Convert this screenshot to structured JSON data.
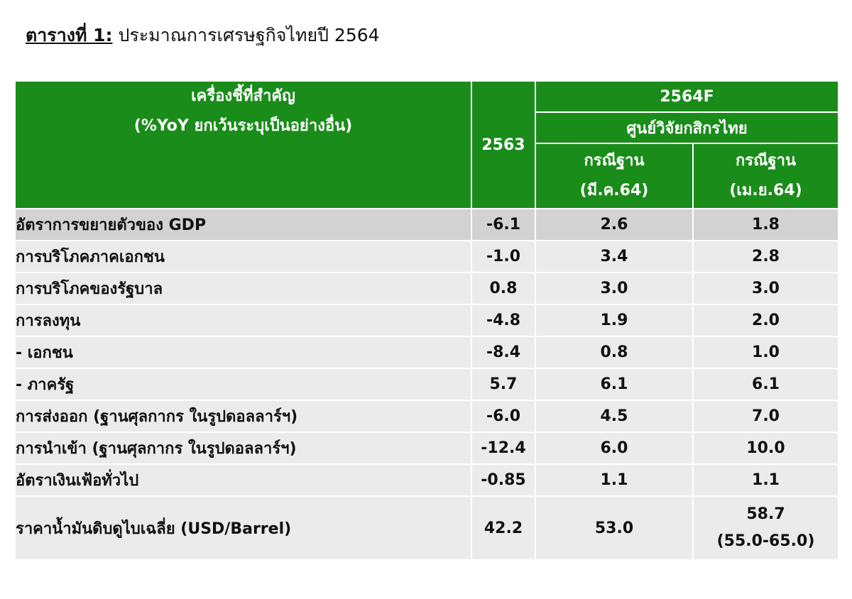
{
  "caption": {
    "label": "ตารางที่ 1:",
    "text": " ประมาณการเศรษฐกิจไทยปี 2564"
  },
  "header": {
    "indicator_line1": "เครื่องชี้ที่สำคัญ",
    "indicator_line2": "(%YoY ยกเว้นระบุเป็นอย่างอื่น)",
    "year_actual": "2563",
    "forecast": "2564F",
    "source": "ศูนย์วิจัยกสิกรไทย",
    "case1_line1": "กรณีฐาน",
    "case1_line2": "(มี.ค.64)",
    "case2_line1": "กรณีฐาน",
    "case2_line2": "(เม.ย.64)"
  },
  "rows": [
    {
      "label": "อัตราการขยายตัวของ GDP",
      "y2563": "-6.1",
      "mar64": "2.6",
      "apr64": "1.8"
    },
    {
      "label": "การบริโภคภาคเอกชน",
      "y2563": "-1.0",
      "mar64": "3.4",
      "apr64": "2.8"
    },
    {
      "label": "การบริโภคของรัฐบาล",
      "y2563": "0.8",
      "mar64": "3.0",
      "apr64": "3.0"
    },
    {
      "label": "การลงทุน",
      "y2563": "-4.8",
      "mar64": "1.9",
      "apr64": "2.0"
    },
    {
      "label": " - เอกชน",
      "y2563": "-8.4",
      "mar64": "0.8",
      "apr64": "1.0"
    },
    {
      "label": " - ภาครัฐ",
      "y2563": "5.7",
      "mar64": "6.1",
      "apr64": "6.1"
    },
    {
      "label": "การส่งออก (ฐานศุลกากร ในรูปดอลลาร์ฯ)",
      "y2563": "-6.0",
      "mar64": "4.5",
      "apr64": "7.0"
    },
    {
      "label": "การนำเข้า (ฐานศุลกากร ในรูปดอลลาร์ฯ)",
      "y2563": "-12.4",
      "mar64": "6.0",
      "apr64": "10.0"
    },
    {
      "label": "อัตราเงินเฟ้อทั่วไป",
      "y2563": "-0.85",
      "mar64": "1.1",
      "apr64": "1.1"
    },
    {
      "label": "ราคาน้ำมันดิบดูไบเฉลี่ย (USD/Barrel)",
      "y2563": "42.2",
      "mar64": "53.0",
      "apr64": "58.7",
      "apr64_range": "(55.0-65.0)"
    }
  ],
  "colors": {
    "header_green": "#1a8c1a",
    "row_gray": "#ebebeb",
    "row_highlight": "#d2d2d2"
  }
}
